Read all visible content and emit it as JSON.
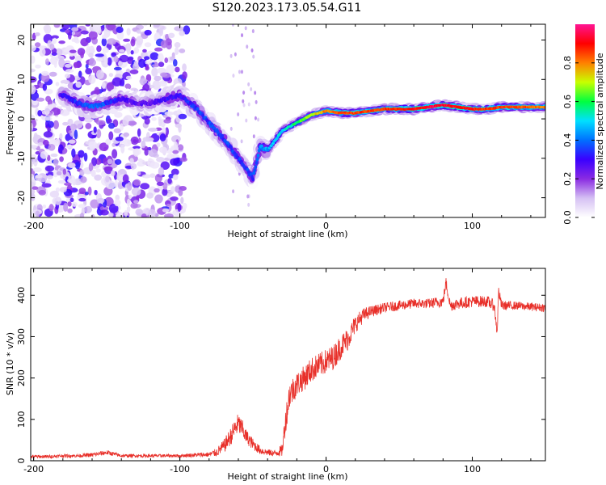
{
  "figure": {
    "title": "S120.2023.173.05.54.G11"
  },
  "chart_data": [
    {
      "type": "heatmap",
      "title": "",
      "xlabel": "Height of straight line (km)",
      "ylabel": "Frequency (Hz)",
      "xlim": [
        -202,
        150
      ],
      "ylim": [
        -25,
        24
      ],
      "xticks": [
        -200,
        -100,
        0,
        100
      ],
      "yticks": [
        -20,
        -10,
        0,
        10,
        20
      ],
      "grid": false,
      "colorbar": {
        "label": "Normalized spectral amplitude",
        "range": [
          0,
          1
        ],
        "ticks": [
          0.0,
          0.2,
          0.4,
          0.6,
          0.8
        ],
        "colormap": [
          "#ffffff",
          "#d5c0f3",
          "#8a2be2",
          "#3a00ff",
          "#0070ff",
          "#00e0ff",
          "#00ff40",
          "#c8ff00",
          "#ff8000",
          "#ff0000",
          "#ff1493"
        ]
      },
      "ridge": {
        "x": [
          -180,
          -170,
          -160,
          -150,
          -140,
          -130,
          -120,
          -110,
          -100,
          -90,
          -80,
          -70,
          -60,
          -50,
          -45,
          -40,
          -30,
          -20,
          -10,
          0,
          10,
          20,
          40,
          60,
          80,
          90,
          100,
          110,
          120,
          130,
          150
        ],
        "frequency": [
          6,
          4,
          3,
          4,
          5,
          4,
          4,
          5,
          6,
          3,
          -1,
          -5,
          -10,
          -15,
          -7,
          -8,
          -3,
          -1,
          1,
          2,
          1.5,
          1.5,
          2.5,
          2.5,
          3.5,
          3,
          2.5,
          2.5,
          3,
          3,
          3
        ],
        "amplitude": [
          0.3,
          0.35,
          0.4,
          0.35,
          0.3,
          0.25,
          0.25,
          0.3,
          0.3,
          0.35,
          0.35,
          0.35,
          0.35,
          0.35,
          0.4,
          0.45,
          0.5,
          0.6,
          0.7,
          0.8,
          0.85,
          0.85,
          0.85,
          0.9,
          0.95,
          0.9,
          0.9,
          0.85,
          0.85,
          0.85,
          0.8
        ]
      }
    },
    {
      "type": "line",
      "title": "",
      "xlabel": "Height of straight line (km)",
      "ylabel": "SNR (10 * v/v)",
      "xlim": [
        -202,
        150
      ],
      "ylim": [
        0,
        465
      ],
      "xticks": [
        -200,
        -100,
        0,
        100
      ],
      "yticks": [
        0,
        100,
        200,
        300,
        400
      ],
      "grid": false,
      "series": [
        {
          "color": "#e8302a",
          "x": [
            -202,
            -190,
            -180,
            -170,
            -160,
            -150,
            -140,
            -130,
            -120,
            -110,
            -100,
            -90,
            -80,
            -75,
            -70,
            -65,
            -62,
            -60,
            -57,
            -55,
            -50,
            -45,
            -40,
            -35,
            -30,
            -28,
            -25,
            -20,
            -15,
            -10,
            -5,
            0,
            5,
            10,
            15,
            20,
            25,
            30,
            40,
            50,
            60,
            70,
            80,
            82,
            85,
            90,
            100,
            110,
            115,
            117,
            118,
            120,
            130,
            140,
            150
          ],
          "y": [
            10,
            10,
            12,
            12,
            14,
            20,
            12,
            12,
            12,
            12,
            12,
            14,
            15,
            20,
            35,
            60,
            80,
            90,
            75,
            60,
            40,
            25,
            20,
            18,
            25,
            90,
            160,
            185,
            200,
            220,
            230,
            240,
            250,
            275,
            295,
            330,
            350,
            360,
            370,
            375,
            380,
            380,
            385,
            430,
            375,
            380,
            385,
            385,
            375,
            310,
            410,
            375,
            375,
            372,
            370
          ],
          "noise": [
            4,
            4,
            4,
            4,
            5,
            6,
            4,
            4,
            4,
            4,
            4,
            5,
            6,
            10,
            16,
            22,
            25,
            25,
            22,
            18,
            14,
            10,
            8,
            8,
            15,
            30,
            35,
            30,
            30,
            30,
            30,
            30,
            30,
            30,
            28,
            22,
            18,
            14,
            12,
            12,
            12,
            12,
            14,
            14,
            14,
            14,
            14,
            14,
            14,
            14,
            14,
            12,
            10,
            10,
            10
          ]
        }
      ]
    }
  ]
}
